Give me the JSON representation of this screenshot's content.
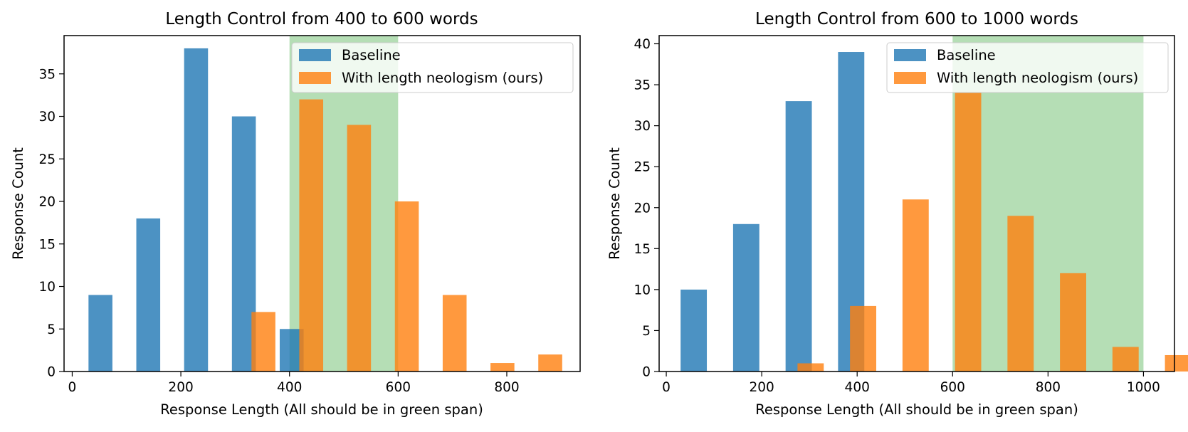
{
  "colors": {
    "baseline": "#1f77b4",
    "ours": "#ff7f0e",
    "span": "#2ca02c",
    "bar_opacity": 0.8,
    "span_opacity": 0.35
  },
  "chart_data": [
    {
      "type": "bar",
      "title": "Length Control from 400 to 600 words",
      "xlabel": "Response Length (All should be in green span)",
      "ylabel": "Response Count",
      "xlim": [
        -15,
        935
      ],
      "ylim": [
        0,
        39.5
      ],
      "xticks": [
        0,
        200,
        400,
        600,
        800
      ],
      "yticks": [
        0,
        5,
        10,
        15,
        20,
        25,
        30,
        35
      ],
      "green_span": [
        400,
        600
      ],
      "bin_width": 88,
      "legend": {
        "position": "upper right",
        "entries": [
          "Baseline",
          "With length neologism (ours)"
        ]
      },
      "series": [
        {
          "name": "Baseline",
          "x": [
            30,
            118,
            206,
            294,
            382
          ],
          "values": [
            9,
            18,
            38,
            30,
            5
          ]
        },
        {
          "name": "With length neologism (ours)",
          "x": [
            330,
            418,
            506,
            594,
            682,
            770,
            858
          ],
          "values": [
            7,
            32,
            29,
            20,
            9,
            1,
            2
          ]
        }
      ],
      "legend_text": {
        "baseline": "Baseline",
        "ours": "With length neologism (ours)"
      }
    },
    {
      "type": "bar",
      "title": "Length Control from 600 to 1000 words",
      "xlabel": "Response Length (All should be in green span)",
      "ylabel": "Response Count",
      "xlim": [
        -15,
        1065
      ],
      "ylim": [
        0,
        41
      ],
      "xticks": [
        0,
        200,
        400,
        600,
        800,
        1000
      ],
      "yticks": [
        0,
        5,
        10,
        15,
        20,
        25,
        30,
        35,
        40
      ],
      "green_span": [
        600,
        1000
      ],
      "bin_width": 110,
      "legend": {
        "position": "upper right",
        "entries": [
          "Baseline",
          "With length neologism (ours)"
        ]
      },
      "series": [
        {
          "name": "Baseline",
          "x": [
            30,
            140,
            250,
            360
          ],
          "values": [
            10,
            18,
            33,
            39
          ]
        },
        {
          "name": "With length neologism (ours)",
          "x": [
            275,
            385,
            495,
            605,
            715,
            825,
            935,
            1045
          ],
          "values": [
            1,
            8,
            21,
            34,
            19,
            12,
            3,
            2
          ]
        }
      ],
      "legend_text": {
        "baseline": "Baseline",
        "ours": "With length neologism (ours)"
      }
    }
  ]
}
